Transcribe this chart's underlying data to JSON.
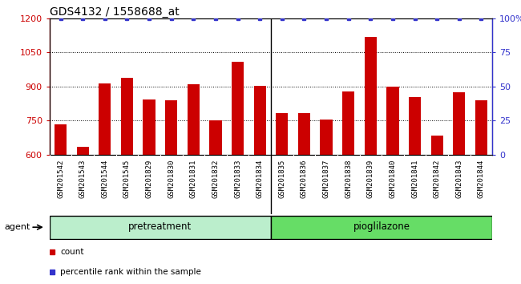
{
  "title": "GDS4132 / 1558688_at",
  "categories": [
    "GSM201542",
    "GSM201543",
    "GSM201544",
    "GSM201545",
    "GSM201829",
    "GSM201830",
    "GSM201831",
    "GSM201832",
    "GSM201833",
    "GSM201834",
    "GSM201835",
    "GSM201836",
    "GSM201837",
    "GSM201838",
    "GSM201839",
    "GSM201840",
    "GSM201841",
    "GSM201842",
    "GSM201843",
    "GSM201844"
  ],
  "bar_values": [
    735,
    635,
    915,
    940,
    845,
    840,
    910,
    750,
    1010,
    905,
    785,
    785,
    755,
    880,
    1120,
    900,
    855,
    685,
    875,
    840
  ],
  "percentile_values": [
    100,
    100,
    100,
    100,
    100,
    100,
    100,
    100,
    100,
    100,
    100,
    100,
    100,
    100,
    100,
    100,
    100,
    100,
    100,
    100
  ],
  "bar_color": "#cc0000",
  "dot_color": "#3333cc",
  "ylim_left": [
    600,
    1200
  ],
  "ylim_right": [
    0,
    100
  ],
  "yticks_left": [
    600,
    750,
    900,
    1050,
    1200
  ],
  "yticks_right": [
    0,
    25,
    50,
    75,
    100
  ],
  "grid_values": [
    750,
    900,
    1050
  ],
  "pretreatment_count": 10,
  "groups": [
    {
      "label": "pretreatment",
      "start": 0,
      "end": 10,
      "color": "#bbeecc"
    },
    {
      "label": "pioglilazone",
      "start": 10,
      "end": 20,
      "color": "#66dd66"
    }
  ],
  "group_label": "agent",
  "legend_items": [
    {
      "label": "count",
      "color": "#cc0000"
    },
    {
      "label": "percentile rank within the sample",
      "color": "#3333cc"
    }
  ],
  "bar_width": 0.55,
  "title_fontsize": 10,
  "axis_color_left": "#cc0000",
  "axis_color_right": "#3333cc",
  "plot_bg": "#ffffff",
  "xticklabel_bg": "#cccccc",
  "col_sep_color": "#aaaaaa"
}
